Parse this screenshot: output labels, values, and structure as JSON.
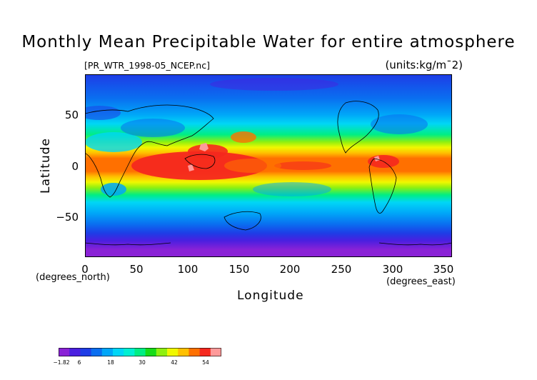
{
  "title": "Monthly Mean Precipitable Water for entire atmosphere",
  "file_label": "[PR_WTR_1998-05_NCEP.nc]",
  "units_label": "(units:kg/m¯2)",
  "axes": {
    "xlabel": "Longitude",
    "ylabel": "Latitude",
    "x_unit_left": "(degrees_north)",
    "x_unit_right": "(degrees_east)",
    "x_ticks": [
      "0",
      "50",
      "100",
      "150",
      "200",
      "250",
      "300",
      "350"
    ],
    "y_ticks": [
      "50",
      "0",
      "−50"
    ],
    "xlim": [
      0,
      357.5
    ],
    "ylim": [
      -90,
      90
    ]
  },
  "colorbar": {
    "labels": [
      "−1.82",
      "6",
      "18",
      "30",
      "42",
      "54"
    ],
    "colors": [
      "#8a22d6",
      "#4a1fe0",
      "#1e3ce6",
      "#0a6ef0",
      "#00a6f8",
      "#00d6f6",
      "#00f0d2",
      "#00ee84",
      "#16dc18",
      "#8ef010",
      "#f0f800",
      "#ffc000",
      "#ff7000",
      "#f5281e",
      "#ff9a9a"
    ]
  }
}
